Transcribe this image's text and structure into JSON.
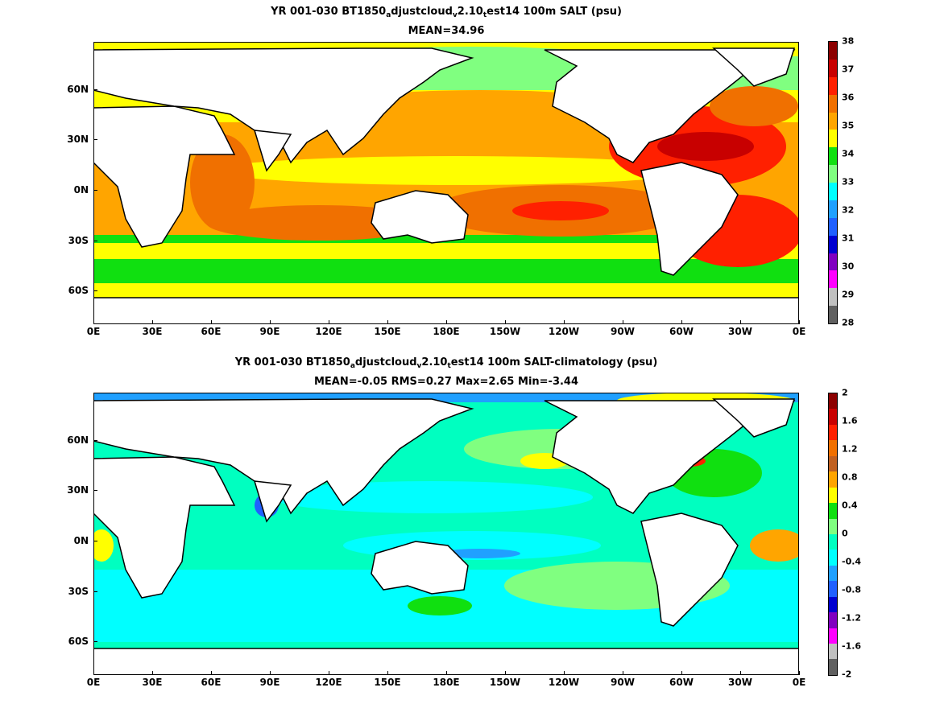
{
  "panel1": {
    "title_pre": "YR 001-030 BT1850",
    "title_sub1": "a",
    "title_mid1": "djustcloud",
    "title_sub2": "v",
    "title_mid2": "2.10",
    "title_sub3": "t",
    "title_post": "est14 100m SALT (psu)",
    "subtitle": "MEAN=34.96",
    "colorbar": {
      "labels": [
        "38",
        "37",
        "36",
        "35",
        "34",
        "33",
        "32",
        "31",
        "30",
        "29",
        "28"
      ],
      "colors": [
        "#8c0000",
        "#c80000",
        "#ff2000",
        "#f07000",
        "#ffa500",
        "#ffff00",
        "#10e010",
        "#80ff80",
        "#00ffff",
        "#20a0ff",
        "#2060ff",
        "#0000d0",
        "#8000c0",
        "#ff00ff",
        "#c0c0c0",
        "#606060"
      ]
    }
  },
  "panel2": {
    "title_pre": "YR 001-030 BT1850",
    "title_sub1": "a",
    "title_mid1": "djustcloud",
    "title_sub2": "v",
    "title_mid2": "2.10",
    "title_sub3": "t",
    "title_post": "est14 100m SALT-climatology (psu)",
    "subtitle": "MEAN=-0.05   RMS=0.27   Max=2.65   Min=-3.44",
    "colorbar": {
      "labels": [
        "2",
        "1.6",
        "1.2",
        "0.8",
        "0.4",
        "0",
        "-0.4",
        "-0.8",
        "-1.2",
        "-1.6",
        "-2"
      ],
      "colors": [
        "#8c0000",
        "#c80000",
        "#ff2000",
        "#f07000",
        "#c06020",
        "#ffa500",
        "#ffff00",
        "#10e010",
        "#80ff80",
        "#00ffc0",
        "#00ffff",
        "#20a0ff",
        "#2060ff",
        "#0000d0",
        "#8000c0",
        "#ff00ff",
        "#c0c0c0",
        "#606060"
      ]
    }
  },
  "axes": {
    "x_ticks": [
      "0E",
      "30E",
      "60E",
      "90E",
      "120E",
      "150E",
      "180E",
      "150W",
      "120W",
      "90W",
      "60W",
      "30W",
      "0E"
    ],
    "y_ticks": [
      "60N",
      "30N",
      "0N",
      "30S",
      "60S"
    ]
  }
}
